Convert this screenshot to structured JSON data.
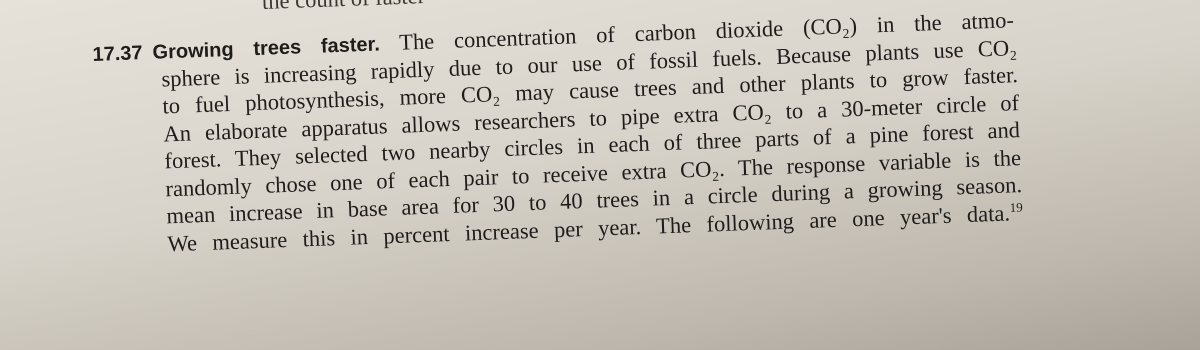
{
  "top_line": "the count of faster",
  "problem": {
    "number": "17.37",
    "title": "Growing trees faster.",
    "lines": [
      "The concentration of carbon dioxide (CO₂) in the atmo-",
      "sphere is increasing rapidly due to our use of fossil fuels. Because plants use CO₂",
      "to fuel photosynthesis, more CO₂ may cause trees and other plants to grow faster.",
      "An elaborate apparatus allows researchers to pipe extra CO₂ to a 30-meter circle of",
      "forest. They selected two nearby circles in each of three parts of a pine forest and",
      "randomly chose one of each pair to receive extra CO₂. The response variable is the",
      "mean increase in base area for 30 to 40 trees in a circle during a growing season.",
      "We measure this in percent increase per year. The following are one year's data."
    ],
    "footnote": "19"
  }
}
